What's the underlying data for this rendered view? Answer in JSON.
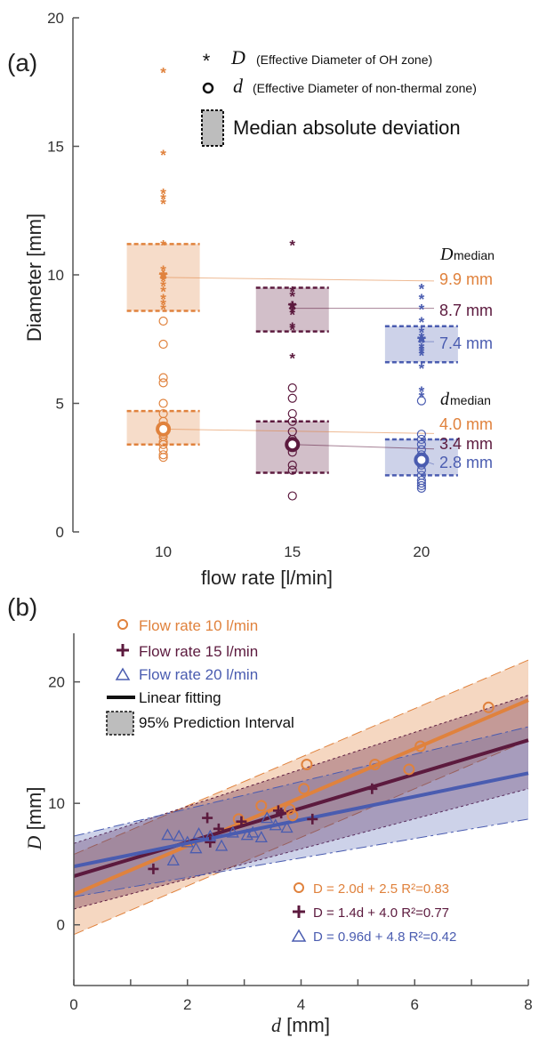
{
  "colors": {
    "c10": "#E0823D",
    "c15": "#5C1A3E",
    "c20": "#4A5CB0",
    "axis": "#555555",
    "mad_fill": "#BDBDBD"
  },
  "panel_a": {
    "label": "(a)",
    "legend": {
      "D_symbol": "D",
      "D_text": "(Effective Diameter of OH zone)",
      "d_symbol": "d",
      "d_text": "(Effective Diameter of non-thermal zone)",
      "mad_text": "Median absolute deviation"
    },
    "D_median_label": {
      "main": "D",
      "sub": "median"
    },
    "d_median_label": {
      "main": "d",
      "sub": "median"
    },
    "D_median_values": [
      "9.9 mm",
      "8.7 mm",
      "7.4 mm"
    ],
    "d_median_values": [
      "4.0 mm",
      "3.4 mm",
      "2.8 mm"
    ]
  },
  "panel_b": {
    "label": "(b)",
    "legend": [
      "Flow rate 10 l/min",
      "Flow rate 15 l/min",
      "Flow rate 20 l/min",
      "Linear fitting",
      "95% Prediction Interval"
    ],
    "equations": [
      "D = 2.0d + 2.5 R²=0.83",
      "D = 1.4d + 4.0 R²=0.77",
      "D = 0.96d + 4.8 R²=0.42"
    ]
  },
  "chart_data": [
    {
      "type": "scatter",
      "xlabel": "flow rate [l/min]",
      "ylabel": "Diameter [mm]",
      "xticks": [
        10,
        15,
        20
      ],
      "yticks": [
        0,
        5,
        10,
        15,
        20
      ],
      "xlim": [
        6.5,
        24
      ],
      "ylim": [
        0,
        20
      ],
      "series": [
        {
          "flow": 10,
          "color_key": "c10",
          "D": [
            17.9,
            14.7,
            13.2,
            13.0,
            12.8,
            11.2,
            10.2,
            10.0,
            9.9,
            9.8,
            9.6,
            9.4,
            9.1,
            8.9,
            8.7
          ],
          "d": [
            8.2,
            7.3,
            6.0,
            5.8,
            5.0,
            4.6,
            4.3,
            4.0,
            3.8,
            3.7,
            3.5,
            3.4,
            3.2,
            3.0,
            2.9
          ],
          "D_median": 9.9,
          "D_mad": [
            8.6,
            11.2
          ],
          "d_median": 4.0,
          "d_mad": [
            3.4,
            4.7
          ]
        },
        {
          "flow": 15,
          "color_key": "c15",
          "D": [
            11.2,
            9.4,
            9.2,
            8.8,
            8.6,
            8.5,
            8.0,
            7.9,
            6.8
          ],
          "d": [
            5.6,
            5.2,
            4.6,
            4.3,
            3.9,
            3.6,
            3.3,
            3.1,
            2.6,
            2.4,
            1.4
          ],
          "D_median": 8.7,
          "D_mad": [
            7.8,
            9.5
          ],
          "d_median": 3.4,
          "d_mad": [
            2.3,
            4.3
          ]
        },
        {
          "flow": 20,
          "color_key": "c20",
          "D": [
            9.5,
            9.1,
            8.7,
            8.2,
            7.8,
            7.6,
            7.4,
            7.2,
            7.1,
            7.0,
            6.9,
            6.4,
            5.5,
            5.3
          ],
          "d": [
            5.1,
            3.8,
            3.6,
            3.4,
            3.2,
            3.0,
            2.9,
            2.8,
            2.6,
            2.4,
            2.2,
            2.0,
            1.9,
            1.8,
            1.7
          ],
          "D_median": 7.4,
          "D_mad": [
            6.6,
            8.0
          ],
          "d_median": 2.8,
          "d_mad": [
            2.2,
            3.6
          ]
        }
      ]
    },
    {
      "type": "scatter",
      "xlabel": "d [mm]",
      "ylabel": "D [mm]",
      "xticks": [
        0,
        2,
        4,
        6,
        8
      ],
      "yticks": [
        0,
        10,
        20
      ],
      "xlim": [
        0,
        8
      ],
      "ylim": [
        -5,
        24
      ],
      "series": [
        {
          "name": "Flow rate 10 l/min",
          "marker": "circle",
          "color_key": "c10",
          "slope": 2.0,
          "intercept": 2.5,
          "pi_at0": [
            -0.8,
            5.8
          ],
          "pi_at8": [
            15.2,
            21.8
          ],
          "points": [
            [
              2.9,
              8.7
            ],
            [
              3.3,
              9.8
            ],
            [
              3.8,
              9.5
            ],
            [
              3.85,
              9.0
            ],
            [
              4.05,
              11.2
            ],
            [
              4.1,
              13.2
            ],
            [
              5.3,
              13.2
            ],
            [
              5.9,
              12.8
            ],
            [
              6.1,
              14.7
            ],
            [
              7.3,
              17.9
            ]
          ]
        },
        {
          "name": "Flow rate 15 l/min",
          "marker": "plus",
          "color_key": "c15",
          "slope": 1.4,
          "intercept": 4.0,
          "pi_at0": [
            1.3,
            6.7
          ],
          "pi_at8": [
            11.2,
            18.9
          ],
          "points": [
            [
              1.4,
              4.6
            ],
            [
              2.35,
              8.8
            ],
            [
              2.4,
              6.8
            ],
            [
              2.55,
              7.9
            ],
            [
              2.95,
              8.5
            ],
            [
              3.6,
              9.4
            ],
            [
              3.65,
              9.2
            ],
            [
              4.2,
              8.7
            ],
            [
              5.25,
              11.2
            ]
          ]
        },
        {
          "name": "Flow rate 20 l/min",
          "marker": "triangle",
          "color_key": "c20",
          "slope": 0.96,
          "intercept": 4.8,
          "pi_at0": [
            2.3,
            7.3
          ],
          "pi_at8": [
            8.7,
            16.3
          ],
          "points": [
            [
              1.65,
              7.4
            ],
            [
              1.75,
              5.3
            ],
            [
              1.85,
              7.3
            ],
            [
              2.0,
              6.8
            ],
            [
              2.15,
              6.3
            ],
            [
              2.2,
              7.5
            ],
            [
              2.4,
              7.3
            ],
            [
              2.6,
              6.5
            ],
            [
              2.8,
              7.6
            ],
            [
              3.05,
              7.4
            ],
            [
              3.15,
              7.6
            ],
            [
              3.3,
              7.2
            ],
            [
              3.4,
              8.8
            ],
            [
              3.55,
              8.2
            ],
            [
              3.75,
              8.0
            ]
          ]
        }
      ]
    }
  ]
}
